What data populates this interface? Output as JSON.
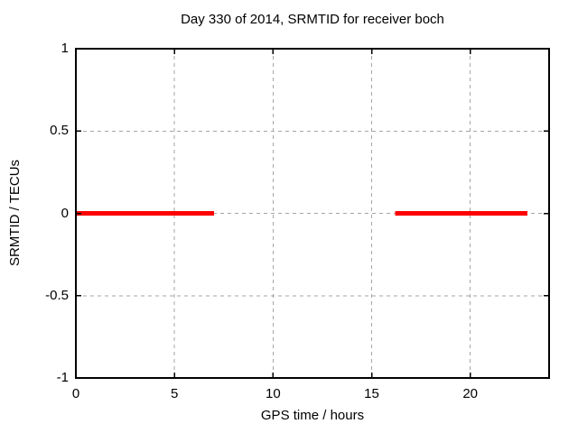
{
  "chart_data": {
    "type": "line",
    "title": "Day 330 of 2014, SRMTID for receiver boch",
    "xlabel": "GPS time / hours",
    "ylabel": "SRMTID / TECUs",
    "xlim": [
      0,
      24
    ],
    "ylim": [
      -1,
      1
    ],
    "xticks": {
      "values": [
        0,
        5,
        10,
        15,
        20
      ],
      "labels": [
        "0",
        "5",
        "10",
        "15",
        "20"
      ]
    },
    "yticks": {
      "values": [
        1,
        0.5,
        0,
        -0.5,
        -1
      ],
      "labels": [
        "1",
        "0.5",
        "0",
        "-0.5",
        "-1"
      ]
    },
    "grid": true,
    "legend": "none",
    "series": [
      {
        "name": "srmtid-segment-1",
        "color": "#ff0000",
        "linewidth": 5,
        "x": [
          0.0,
          7.0
        ],
        "y": [
          0,
          0
        ]
      },
      {
        "name": "srmtid-segment-2",
        "color": "#ff0000",
        "linewidth": 5,
        "x": [
          16.2,
          22.9
        ],
        "y": [
          0,
          0
        ]
      }
    ],
    "colors": {
      "line": "#ff0000",
      "grid": "#a6a6a6",
      "border": "#000000",
      "text": "#000000",
      "background": "#ffffff"
    }
  }
}
